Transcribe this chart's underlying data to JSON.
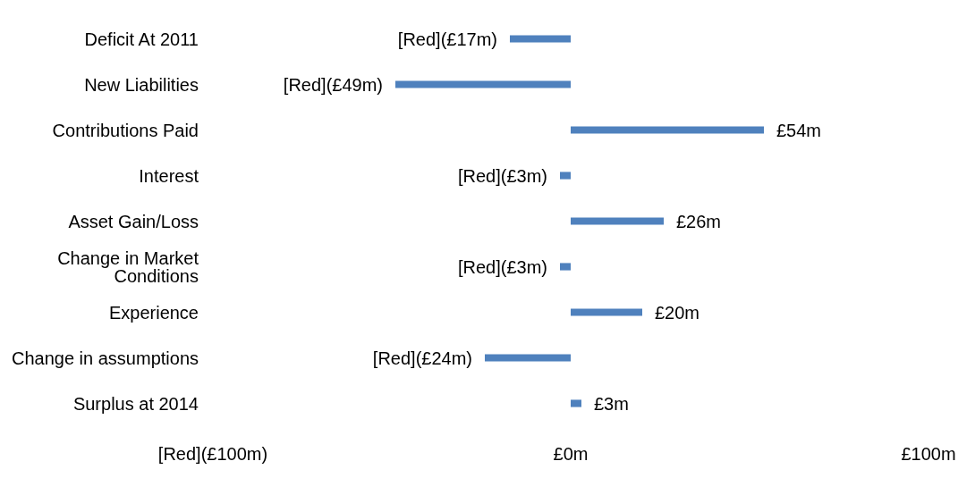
{
  "chart_data": {
    "type": "bar",
    "orientation": "horizontal",
    "categories": [
      "Deficit At 2011",
      "New Liabilities",
      "Contributions Paid",
      "Interest",
      "Asset Gain/Loss",
      "Change in Market Conditions",
      "Experience",
      "Change in assumptions",
      "Surplus at 2014"
    ],
    "values": [
      -17,
      -49,
      54,
      -3,
      26,
      -3,
      20,
      -24,
      3
    ],
    "value_labels": [
      "[Red](£17m)",
      "[Red](£49m)",
      "£54m",
      "[Red](£3m)",
      "£26m",
      "[Red](£3m)",
      "£20m",
      "[Red](£24m)",
      "£3m"
    ],
    "color": "#4f81bd",
    "xlim": [
      -100,
      100
    ],
    "xticks": [
      {
        "value": -100,
        "label": "[Red](£100m)"
      },
      {
        "value": 0,
        "label": "£0m"
      },
      {
        "value": 100,
        "label": "£100m"
      }
    ],
    "grid": false,
    "legend": false
  }
}
